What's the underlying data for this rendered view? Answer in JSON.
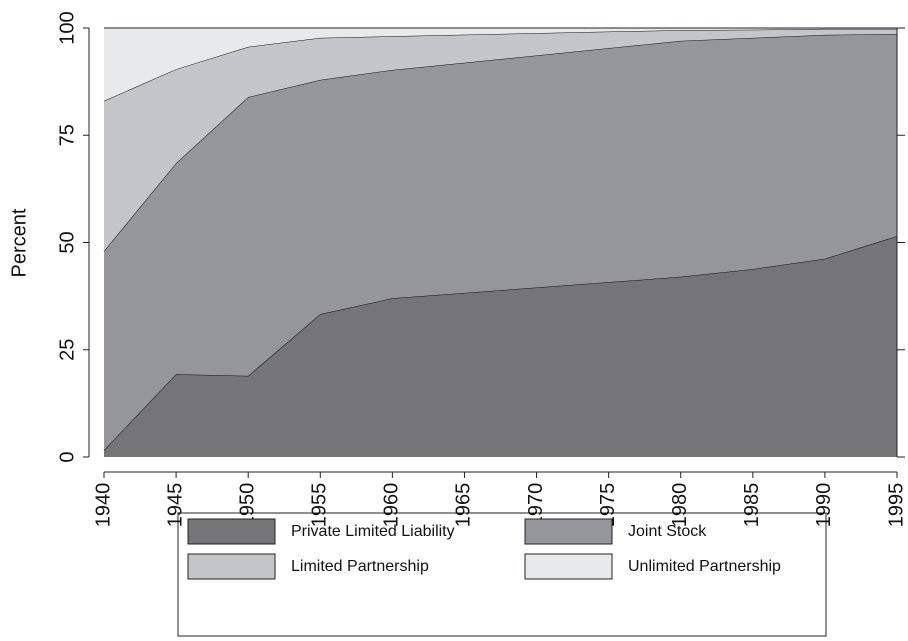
{
  "chart_data": {
    "type": "stacked_area",
    "y_label": "Percent",
    "x": [
      1940,
      1945,
      1950,
      1955,
      1960,
      1980,
      1985,
      1990,
      1995
    ],
    "xlim": [
      1940,
      1995
    ],
    "xticks": [
      1940,
      1945,
      1950,
      1955,
      1960,
      1965,
      1970,
      1975,
      1980,
      1985,
      1990,
      1995
    ],
    "ylim": [
      0,
      100
    ],
    "yticks": [
      0,
      25,
      50,
      75,
      100
    ],
    "series": [
      {
        "name": "Private Limited Liability",
        "color": "#747479",
        "values": [
          1.6,
          19.3,
          18.9,
          33.3,
          37,
          42,
          43.8,
          46.2,
          51.5
        ]
      },
      {
        "name": "Joint Stock",
        "color": "#95969b",
        "values": [
          46.4,
          49.2,
          65,
          54.6,
          53.2,
          55,
          53.9,
          52.2,
          47.1
        ]
      },
      {
        "name": "Limited Partnership",
        "color": "#c4c5c9",
        "values": [
          35,
          21.9,
          11.7,
          9.8,
          7.9,
          2.5,
          1.9,
          1.4,
          1.2
        ]
      },
      {
        "name": "Unlimited Partnership",
        "color": "#e8e9eb",
        "values": [
          17,
          9.6,
          4.4,
          2.3,
          1.9,
          0.5,
          0.4,
          0.2,
          0.2
        ]
      }
    ]
  }
}
